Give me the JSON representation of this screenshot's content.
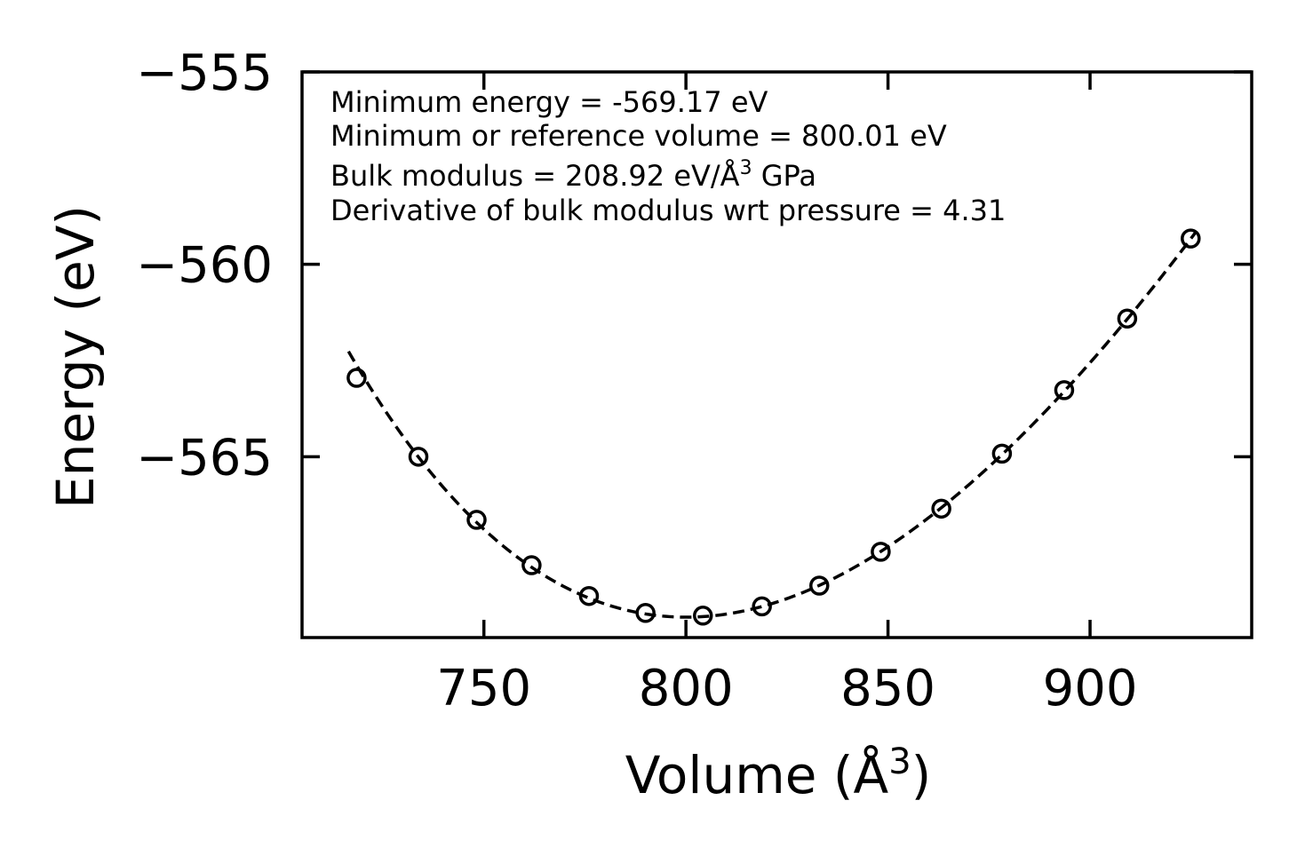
{
  "chart_data": {
    "type": "scatter",
    "title": "",
    "xlabel": "Volume (Å$^3$)",
    "xlabel_main": "Volume (Å",
    "xlabel_sup": "3",
    "xlabel_close": ")",
    "ylabel": "Energy (eV)",
    "xlim": [
      705,
      940
    ],
    "ylim": [
      -569.7,
      -555
    ],
    "xticks": [
      750,
      800,
      850,
      900
    ],
    "yticks": [
      -555,
      -560,
      -565
    ],
    "xtick_labels": [
      "750",
      "800",
      "850",
      "900"
    ],
    "ytick_labels": [
      "−555",
      "−560",
      "−565"
    ],
    "grid": false,
    "series": [
      {
        "name": "data",
        "style": "open circles",
        "x": [
          718.5,
          733.8,
          748.2,
          761.8,
          776.0,
          790.0,
          804.2,
          818.8,
          833.0,
          848.2,
          863.2,
          878.2,
          893.6,
          909.2,
          924.9
        ],
        "y": [
          -562.95,
          -565.0,
          -566.64,
          -567.82,
          -568.62,
          -569.06,
          -569.13,
          -568.89,
          -568.35,
          -567.47,
          -566.35,
          -564.92,
          -563.27,
          -561.41,
          -559.33
        ]
      },
      {
        "name": "fit",
        "style": "dashed line",
        "x_range": [
          716.5,
          926.0
        ]
      }
    ],
    "annotations": [
      "Minimum energy = -569.17 eV",
      "Minimum or reference volume = 800.01 eV",
      "Bulk modulus = 208.92 eV/Å$^3$ GPa",
      "Derivative of bulk modulus wrt pressure = 4.31"
    ],
    "annotation_3_main": "Bulk modulus = 208.92 eV/Å",
    "annotation_3_sup": "3",
    "annotation_3_tail": " GPa",
    "fit_params": {
      "E0": -569.17,
      "V0": 800.01,
      "B0_GPa": 208.92,
      "B0_prime": 4.31
    },
    "colors": {
      "line": "#000000",
      "marker": "#000000",
      "background": "#ffffff"
    }
  }
}
